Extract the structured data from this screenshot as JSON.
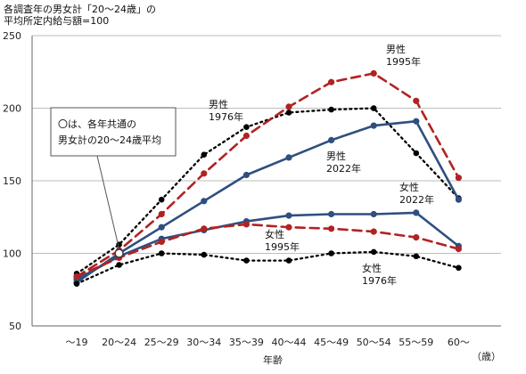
{
  "chart_data": {
    "type": "line",
    "title_lines": [
      "各調査年の男女計「20～24歳」の",
      "平均所定内給与額=100"
    ],
    "categories": [
      "～19",
      "20～24",
      "25～29",
      "30～34",
      "35～39",
      "40～44",
      "45～49",
      "50～54",
      "55～59",
      "60～"
    ],
    "xlabel": "年齢",
    "x_unit": "（歳）",
    "ylim": [
      50,
      250
    ],
    "yticks": [
      50,
      100,
      150,
      200,
      250
    ],
    "grid": true,
    "callout_lines": [
      "〇は、各年共通の",
      "男女計の20～24歳平均"
    ],
    "series": [
      {
        "name_lines": [
          "男性",
          "1976年"
        ],
        "color": "#000000",
        "style": "dotted",
        "values": [
          86,
          106,
          137,
          168,
          187,
          197,
          199,
          200,
          169,
          138
        ]
      },
      {
        "name_lines": [
          "男性",
          "1995年"
        ],
        "color": "#B22222",
        "style": "dashed",
        "values": [
          84,
          102,
          127,
          155,
          181,
          201,
          218,
          224,
          205,
          152
        ]
      },
      {
        "name_lines": [
          "男性",
          "2022年"
        ],
        "color": "#2F4F7F",
        "style": "solid",
        "values": [
          80,
          100,
          118,
          136,
          154,
          166,
          178,
          188,
          191,
          137
        ]
      },
      {
        "name_lines": [
          "女性",
          "2022年"
        ],
        "color": "#2F4F7F",
        "style": "solid",
        "values": [
          82,
          98,
          110,
          116,
          122,
          126,
          127,
          127,
          128,
          105
        ]
      },
      {
        "name_lines": [
          "女性",
          "1995年"
        ],
        "color": "#B22222",
        "style": "dashed",
        "values": [
          84,
          97,
          108,
          117,
          120,
          118,
          117,
          115,
          111,
          103
        ]
      },
      {
        "name_lines": [
          "女性",
          "1976年"
        ],
        "color": "#000000",
        "style": "dotted",
        "values": [
          79,
          92,
          100,
          99,
          95,
          95,
          100,
          101,
          98,
          90
        ]
      }
    ]
  }
}
